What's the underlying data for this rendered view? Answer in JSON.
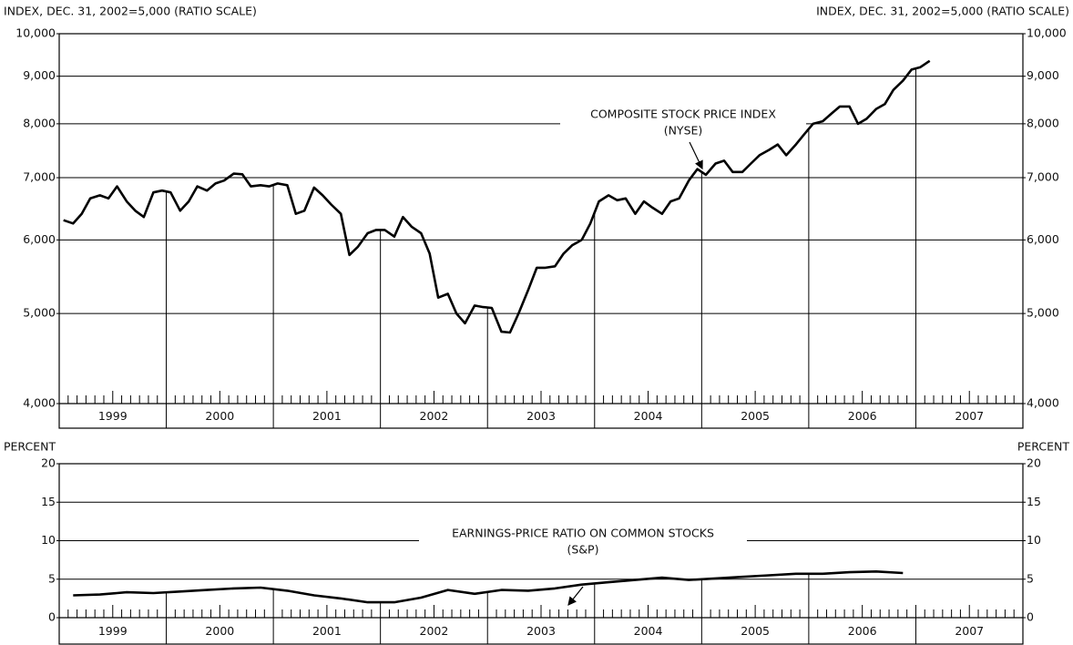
{
  "chart_data": [
    {
      "type": "line",
      "ylabel": "INDEX, DEC. 31, 2002=5,000 (RATIO SCALE)",
      "log": true,
      "ylim": [
        4000,
        10000
      ],
      "yticks": [
        {
          "value": 4000,
          "label": "4,000"
        },
        {
          "value": 5000,
          "label": "5,000"
        },
        {
          "value": 6000,
          "label": "6,000"
        },
        {
          "value": 7000,
          "label": "7,000"
        },
        {
          "value": 8000,
          "label": "8,000"
        },
        {
          "value": 9000,
          "label": "9,000"
        },
        {
          "value": 10000,
          "label": "10,000"
        }
      ],
      "xlim": [
        1999,
        2008
      ],
      "xticks": [
        1999,
        2000,
        2001,
        2002,
        2003,
        2004,
        2005,
        2006,
        2007
      ],
      "grid": true,
      "annotation": [
        "COMPOSITE STOCK PRICE INDEX",
        "(NYSE)"
      ],
      "x": [
        1999.04,
        1999.13,
        1999.21,
        1999.29,
        1999.38,
        1999.46,
        1999.54,
        1999.63,
        1999.71,
        1999.79,
        1999.88,
        1999.96,
        2000.04,
        2000.13,
        2000.21,
        2000.29,
        2000.38,
        2000.46,
        2000.54,
        2000.63,
        2000.71,
        2000.79,
        2000.88,
        2000.96,
        2001.04,
        2001.13,
        2001.21,
        2001.29,
        2001.38,
        2001.46,
        2001.54,
        2001.63,
        2001.71,
        2001.79,
        2001.88,
        2001.96,
        2002.04,
        2002.13,
        2002.21,
        2002.29,
        2002.38,
        2002.46,
        2002.54,
        2002.63,
        2002.71,
        2002.79,
        2002.88,
        2002.96,
        2003.04,
        2003.13,
        2003.21,
        2003.29,
        2003.38,
        2003.46,
        2003.54,
        2003.63,
        2003.71,
        2003.79,
        2003.88,
        2003.96,
        2004.04,
        2004.13,
        2004.21,
        2004.29,
        2004.38,
        2004.46,
        2004.54,
        2004.63,
        2004.71,
        2004.79,
        2004.88,
        2004.96,
        2005.04,
        2005.13,
        2005.21,
        2005.29,
        2005.38,
        2005.46,
        2005.54,
        2005.63,
        2005.71,
        2005.79,
        2005.88,
        2005.96,
        2006.04,
        2006.13,
        2006.21,
        2006.29,
        2006.38,
        2006.46,
        2006.54,
        2006.63,
        2006.71,
        2006.79,
        2006.88,
        2006.96,
        2007.04,
        2007.13
      ],
      "series": [
        {
          "color": "#000000",
          "values": [
            6300,
            6250,
            6400,
            6650,
            6700,
            6650,
            6850,
            6600,
            6450,
            6350,
            6750,
            6780,
            6750,
            6450,
            6600,
            6850,
            6780,
            6900,
            6950,
            7070,
            7060,
            6850,
            6870,
            6850,
            6900,
            6870,
            6400,
            6450,
            6830,
            6700,
            6550,
            6400,
            5780,
            5900,
            6100,
            6150,
            6150,
            6050,
            6350,
            6200,
            6100,
            5800,
            5200,
            5250,
            5000,
            4880,
            5100,
            5080,
            5070,
            4780,
            4770,
            5000,
            5300,
            5600,
            5600,
            5620,
            5800,
            5920,
            6000,
            6250,
            6600,
            6700,
            6620,
            6650,
            6400,
            6600,
            6500,
            6400,
            6600,
            6650,
            6950,
            7150,
            7050,
            7250,
            7300,
            7100,
            7100,
            7250,
            7400,
            7500,
            7600,
            7400,
            7600,
            7800,
            8000,
            8050,
            8200,
            8350,
            8350,
            8000,
            8100,
            8300,
            8400,
            8700,
            8900,
            9150,
            9200,
            9350
          ]
        }
      ]
    },
    {
      "type": "line",
      "ylabel": "PERCENT",
      "log": false,
      "ylim": [
        0,
        20
      ],
      "yticks": [
        0,
        5,
        10,
        15,
        20
      ],
      "xlim": [
        1999,
        2008
      ],
      "xticks": [
        1999,
        2000,
        2001,
        2002,
        2003,
        2004,
        2005,
        2006,
        2007
      ],
      "grid": true,
      "annotation": [
        "EARNINGS-PRICE RATIO ON COMMON STOCKS",
        "(S&P)"
      ],
      "x": [
        1999.13,
        1999.38,
        1999.63,
        1999.88,
        2000.13,
        2000.38,
        2000.63,
        2000.88,
        2001.13,
        2001.38,
        2001.63,
        2001.88,
        2002.13,
        2002.38,
        2002.63,
        2002.88,
        2003.13,
        2003.38,
        2003.63,
        2003.88,
        2004.13,
        2004.38,
        2004.63,
        2004.88,
        2005.13,
        2005.38,
        2005.63,
        2005.88,
        2006.13,
        2006.38,
        2006.63,
        2006.88
      ],
      "series": [
        {
          "color": "#000000",
          "values": [
            2.9,
            3.0,
            3.3,
            3.2,
            3.4,
            3.6,
            3.8,
            3.9,
            3.5,
            2.9,
            2.5,
            2.0,
            2.0,
            2.6,
            3.6,
            3.1,
            3.6,
            3.5,
            3.8,
            4.3,
            4.6,
            4.9,
            5.2,
            4.9,
            5.1,
            5.3,
            5.5,
            5.7,
            5.7,
            5.9,
            6.0,
            5.8
          ]
        }
      ]
    }
  ]
}
